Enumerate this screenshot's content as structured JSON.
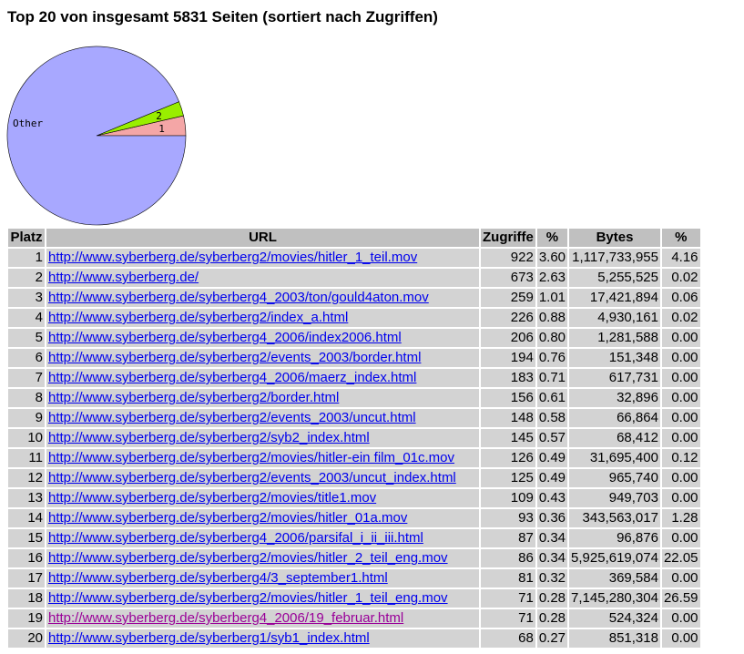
{
  "page": {
    "title": "Top 20 von insgesamt 5831 Seiten (sortiert nach Zugriffen)"
  },
  "chart_data": {
    "type": "pie",
    "slices": [
      {
        "label": "1",
        "percent": 3.6,
        "color": "#f4a6a6"
      },
      {
        "label": "2",
        "percent": 2.63,
        "color": "#99ee00"
      },
      {
        "label": "Other",
        "percent": 93.77,
        "color": "#a8a8ff"
      }
    ]
  },
  "table": {
    "headers": {
      "rank": "Platz",
      "url": "URL",
      "hits": "Zugriffe",
      "hits_pct": "%",
      "bytes": "Bytes",
      "bytes_pct": "%"
    },
    "rows": [
      {
        "rank": "1",
        "url": "http://www.syberberg.de/syberberg2/movies/hitler_1_teil.mov",
        "hits": "922",
        "hits_pct": "3.60",
        "bytes": "1,117,733,955",
        "bytes_pct": "4.16"
      },
      {
        "rank": "2",
        "url": "http://www.syberberg.de/",
        "hits": "673",
        "hits_pct": "2.63",
        "bytes": "5,255,525",
        "bytes_pct": "0.02"
      },
      {
        "rank": "3",
        "url": "http://www.syberberg.de/syberberg4_2003/ton/gould4aton.mov",
        "hits": "259",
        "hits_pct": "1.01",
        "bytes": "17,421,894",
        "bytes_pct": "0.06"
      },
      {
        "rank": "4",
        "url": "http://www.syberberg.de/syberberg2/index_a.html",
        "hits": "226",
        "hits_pct": "0.88",
        "bytes": "4,930,161",
        "bytes_pct": "0.02"
      },
      {
        "rank": "5",
        "url": "http://www.syberberg.de/syberberg4_2006/index2006.html",
        "hits": "206",
        "hits_pct": "0.80",
        "bytes": "1,281,588",
        "bytes_pct": "0.00"
      },
      {
        "rank": "6",
        "url": "http://www.syberberg.de/syberberg2/events_2003/border.html",
        "hits": "194",
        "hits_pct": "0.76",
        "bytes": "151,348",
        "bytes_pct": "0.00"
      },
      {
        "rank": "7",
        "url": "http://www.syberberg.de/syberberg4_2006/maerz_index.html",
        "hits": "183",
        "hits_pct": "0.71",
        "bytes": "617,731",
        "bytes_pct": "0.00"
      },
      {
        "rank": "8",
        "url": "http://www.syberberg.de/syberberg2/border.html",
        "hits": "156",
        "hits_pct": "0.61",
        "bytes": "32,896",
        "bytes_pct": "0.00"
      },
      {
        "rank": "9",
        "url": "http://www.syberberg.de/syberberg2/events_2003/uncut.html",
        "hits": "148",
        "hits_pct": "0.58",
        "bytes": "66,864",
        "bytes_pct": "0.00"
      },
      {
        "rank": "10",
        "url": "http://www.syberberg.de/syberberg2/syb2_index.html",
        "hits": "145",
        "hits_pct": "0.57",
        "bytes": "68,412",
        "bytes_pct": "0.00"
      },
      {
        "rank": "11",
        "url": "http://www.syberberg.de/syberberg2/movies/hitler-ein film_01c.mov",
        "hits": "126",
        "hits_pct": "0.49",
        "bytes": "31,695,400",
        "bytes_pct": "0.12"
      },
      {
        "rank": "12",
        "url": "http://www.syberberg.de/syberberg2/events_2003/uncut_index.html",
        "hits": "125",
        "hits_pct": "0.49",
        "bytes": "965,740",
        "bytes_pct": "0.00"
      },
      {
        "rank": "13",
        "url": "http://www.syberberg.de/syberberg2/movies/title1.mov",
        "hits": "109",
        "hits_pct": "0.43",
        "bytes": "949,703",
        "bytes_pct": "0.00"
      },
      {
        "rank": "14",
        "url": "http://www.syberberg.de/syberberg2/movies/hitler_01a.mov",
        "hits": "93",
        "hits_pct": "0.36",
        "bytes": "343,563,017",
        "bytes_pct": "1.28"
      },
      {
        "rank": "15",
        "url": "http://www.syberberg.de/syberberg4_2006/parsifal_i_ii_iii.html",
        "hits": "87",
        "hits_pct": "0.34",
        "bytes": "96,876",
        "bytes_pct": "0.00"
      },
      {
        "rank": "16",
        "url": "http://www.syberberg.de/syberberg2/movies/hitler_2_teil_eng.mov",
        "hits": "86",
        "hits_pct": "0.34",
        "bytes": "5,925,619,074",
        "bytes_pct": "22.05"
      },
      {
        "rank": "17",
        "url": "http://www.syberberg.de/syberberg4/3_september1.html",
        "hits": "81",
        "hits_pct": "0.32",
        "bytes": "369,584",
        "bytes_pct": "0.00"
      },
      {
        "rank": "18",
        "url": "http://www.syberberg.de/syberberg2/movies/hitler_1_teil_eng.mov",
        "hits": "71",
        "hits_pct": "0.28",
        "bytes": "7,145,280,304",
        "bytes_pct": "26.59"
      },
      {
        "rank": "19",
        "url": "http://www.syberberg.de/syberberg4_2006/19_februar.html",
        "hits": "71",
        "hits_pct": "0.28",
        "bytes": "524,324",
        "bytes_pct": "0.00",
        "visited": true
      },
      {
        "rank": "20",
        "url": "http://www.syberberg.de/syberberg1/syb1_index.html",
        "hits": "68",
        "hits_pct": "0.27",
        "bytes": "851,318",
        "bytes_pct": "0.00"
      }
    ]
  }
}
